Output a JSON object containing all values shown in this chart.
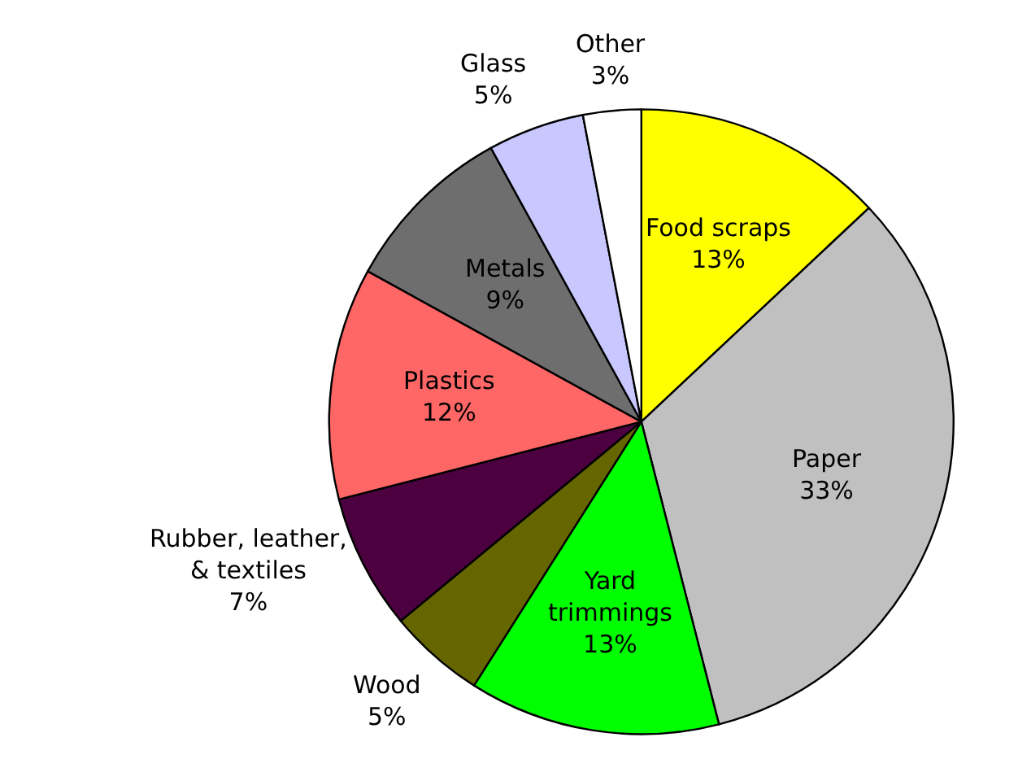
{
  "chart_data": {
    "type": "pie",
    "categories": [
      "Food scraps",
      "Paper",
      "Yard trimmings",
      "Wood",
      "Rubber, leather, & textiles",
      "Plastics",
      "Metals",
      "Glass",
      "Other"
    ],
    "values": [
      13,
      33,
      13,
      5,
      7,
      12,
      9,
      5,
      3
    ],
    "value_labels": [
      "13%",
      "33%",
      "13%",
      "5%",
      "7%",
      "12%",
      "9%",
      "5%",
      "3%"
    ],
    "colors": [
      "#ffff00",
      "#c0c0c0",
      "#00ff00",
      "#666600",
      "#4d0040",
      "#ff6666",
      "#6e6e6e",
      "#c8c8ff",
      "#ffffff"
    ],
    "legend": false
  }
}
